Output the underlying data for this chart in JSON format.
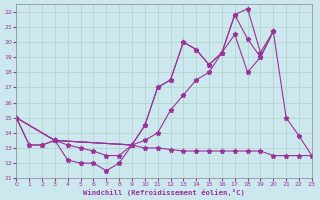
{
  "xlabel": "Windchill (Refroidissement éolien,°C)",
  "bg_color": "#cce8ee",
  "line_color": "#993399",
  "xlim": [
    0,
    23
  ],
  "ylim": [
    11,
    22.5
  ],
  "yticks": [
    11,
    12,
    13,
    14,
    15,
    16,
    17,
    18,
    19,
    20,
    21,
    22
  ],
  "xticks": [
    0,
    1,
    2,
    3,
    4,
    5,
    6,
    7,
    8,
    9,
    10,
    11,
    12,
    13,
    14,
    15,
    16,
    17,
    18,
    19,
    20,
    21,
    22,
    23
  ],
  "line1_x": [
    0,
    1,
    2,
    3,
    4,
    5,
    6,
    7,
    8,
    9
  ],
  "line1_y": [
    15.0,
    13.2,
    13.2,
    13.5,
    12.2,
    12.0,
    12.0,
    11.5,
    12.0,
    13.2
  ],
  "line2_x": [
    0,
    3,
    9,
    10,
    11,
    12,
    13,
    14,
    15,
    16,
    17,
    18,
    19,
    20,
    21,
    22,
    23
  ],
  "line2_y": [
    15.0,
    13.5,
    13.2,
    14.5,
    17.0,
    17.5,
    20.0,
    19.5,
    18.5,
    19.3,
    21.8,
    22.2,
    19.3,
    20.7,
    15.0,
    13.8,
    12.5
  ],
  "line3_x": [
    0,
    3,
    9,
    10,
    11,
    12,
    13,
    14,
    15,
    16,
    17,
    18,
    19,
    20
  ],
  "line3_y": [
    15.0,
    13.5,
    13.2,
    14.5,
    17.0,
    17.5,
    20.0,
    19.5,
    18.5,
    19.3,
    21.8,
    20.2,
    19.0,
    20.7
  ],
  "line4_x": [
    0,
    3,
    9,
    10,
    11,
    12,
    13,
    14,
    15,
    16,
    17,
    18,
    19,
    20
  ],
  "line4_y": [
    15.0,
    13.5,
    13.2,
    13.5,
    14.0,
    15.5,
    16.5,
    17.5,
    18.0,
    19.3,
    20.5,
    18.0,
    19.0,
    20.7
  ],
  "line5_x": [
    0,
    1,
    2,
    3,
    4,
    5,
    6,
    7,
    8,
    9,
    10,
    11,
    12,
    13,
    14,
    15,
    16,
    17,
    18,
    19,
    20,
    21,
    22,
    23
  ],
  "line5_y": [
    15.0,
    13.2,
    13.2,
    13.5,
    13.2,
    13.0,
    12.8,
    12.5,
    12.5,
    13.2,
    13.0,
    13.0,
    12.9,
    12.8,
    12.8,
    12.8,
    12.8,
    12.8,
    12.8,
    12.8,
    12.5,
    12.5,
    12.5,
    12.5
  ]
}
